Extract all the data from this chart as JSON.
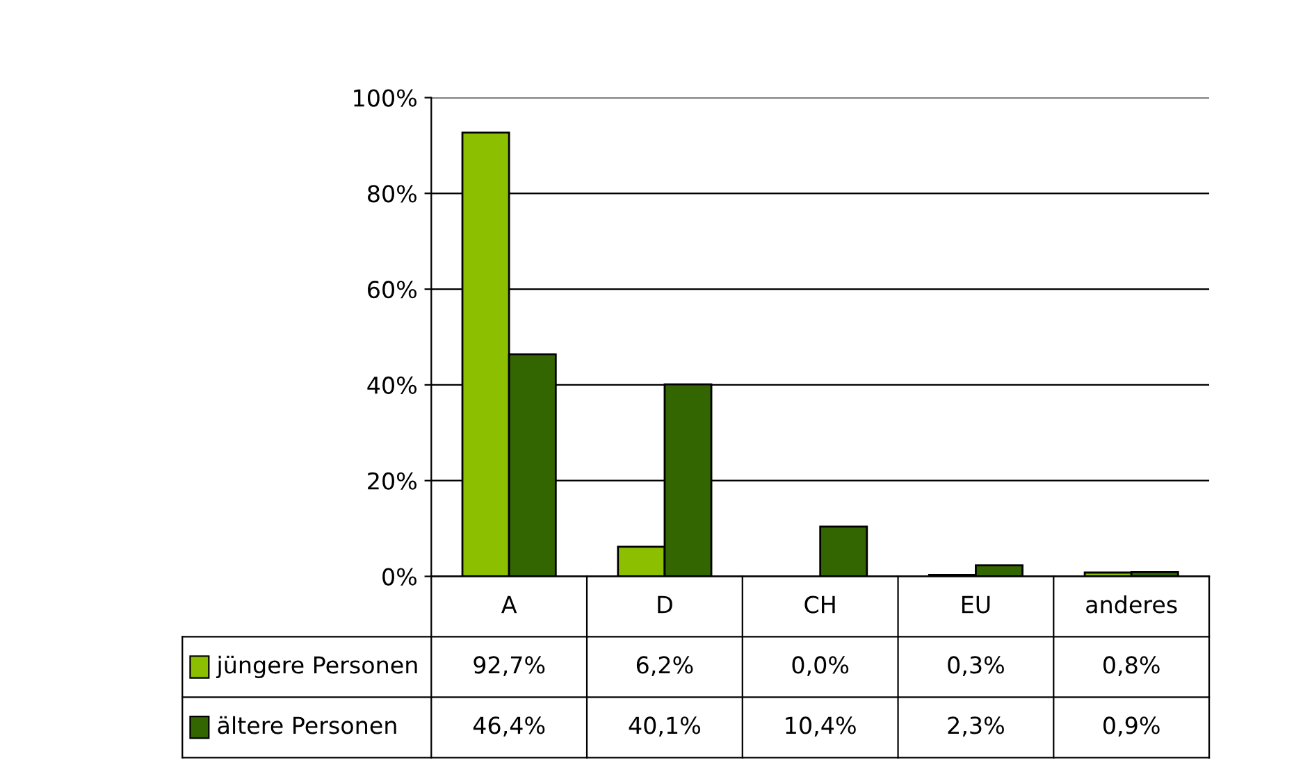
{
  "chart_data": {
    "type": "bar",
    "categories": [
      "A",
      "D",
      "CH",
      "EU",
      "anderes"
    ],
    "series": [
      {
        "name": "jüngere Personen",
        "color": "#8cbf00",
        "values": [
          92.7,
          6.2,
          0.0,
          0.3,
          0.8
        ],
        "value_labels": [
          "92,7%",
          "6,2%",
          "0,0%",
          "0,3%",
          "0,8%"
        ]
      },
      {
        "name": "ältere Personen",
        "color": "#336600",
        "values": [
          46.4,
          40.1,
          10.4,
          2.3,
          0.9
        ],
        "value_labels": [
          "46,4%",
          "40,1%",
          "10,4%",
          "2,3%",
          "0,9%"
        ]
      }
    ],
    "ylim": [
      0,
      100
    ],
    "yticks": [
      {
        "value": 0,
        "label": "0%"
      },
      {
        "value": 20,
        "label": "20%"
      },
      {
        "value": 40,
        "label": "40%"
      },
      {
        "value": 60,
        "label": "60%"
      },
      {
        "value": 80,
        "label": "80%"
      },
      {
        "value": 100,
        "label": "100%"
      }
    ],
    "grid": "y",
    "legend": "bottom left"
  }
}
